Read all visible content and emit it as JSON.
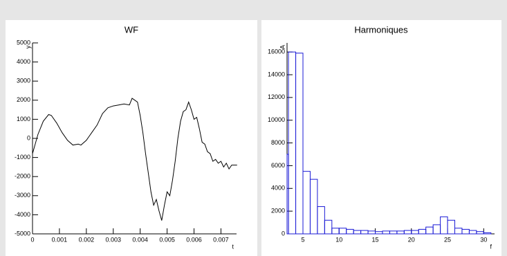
{
  "chart_data": [
    {
      "type": "line",
      "title": "WF",
      "x_label": "t",
      "y_label": "y",
      "color": "#000000",
      "x": [
        0,
        0.0002,
        0.0004,
        0.0006,
        0.0007,
        0.0009,
        0.0011,
        0.0013,
        0.0015,
        0.0017,
        0.0018,
        0.002,
        0.0022,
        0.0024,
        0.0026,
        0.0028,
        0.003,
        0.0032,
        0.0034,
        0.0036,
        0.0037,
        0.0039,
        0.004,
        0.0041,
        0.0042,
        0.0043,
        0.0044,
        0.0045,
        0.0046,
        0.0047,
        0.0048,
        0.0049,
        0.005,
        0.0051,
        0.0052,
        0.0053,
        0.0054,
        0.0055,
        0.0056,
        0.0057,
        0.0058,
        0.0059,
        0.006,
        0.0061,
        0.0062,
        0.0063,
        0.0064,
        0.0065,
        0.0066,
        0.0067,
        0.0068,
        0.0069,
        0.007,
        0.0071,
        0.0072,
        0.0073,
        0.0074,
        0.0076
      ],
      "values": [
        -800,
        200,
        900,
        1250,
        1200,
        800,
        300,
        -100,
        -350,
        -300,
        -350,
        -100,
        300,
        700,
        1300,
        1600,
        1700,
        1750,
        1800,
        1750,
        2100,
        1900,
        1200,
        300,
        -800,
        -1800,
        -2800,
        -3500,
        -3200,
        -3800,
        -4300,
        -3500,
        -2800,
        -3000,
        -2200,
        -1200,
        0,
        900,
        1400,
        1500,
        1900,
        1500,
        1000,
        1100,
        500,
        -200,
        -300,
        -700,
        -800,
        -1200,
        -1100,
        -1300,
        -1200,
        -1500,
        -1300,
        -1600,
        -1400,
        -1400
      ],
      "xlim": [
        0,
        0.00758
      ],
      "xticks": [
        0,
        0.001,
        0.002,
        0.003,
        0.004,
        0.005,
        0.006,
        0.007
      ],
      "ylim": [
        -5000,
        5000
      ],
      "yticks": [
        -5000,
        -4000,
        -3000,
        -2000,
        -1000,
        0,
        1000,
        2000,
        3000,
        4000,
        5000
      ]
    },
    {
      "type": "histogram",
      "title": "Harmoniques",
      "x_label": "f",
      "y_label": "A",
      "color": "#1a1ad6",
      "bins": [
        2.8,
        3,
        4,
        5,
        6,
        7,
        8,
        9,
        10,
        11,
        12,
        13,
        14,
        15,
        16,
        17,
        18,
        19,
        20,
        21,
        22,
        23,
        24,
        25,
        26,
        27,
        28,
        29,
        30,
        31
      ],
      "values": [
        7000,
        16000,
        15900,
        5500,
        4800,
        2400,
        1200,
        500,
        500,
        400,
        300,
        300,
        250,
        200,
        250,
        250,
        250,
        300,
        300,
        400,
        600,
        800,
        1500,
        1200,
        500,
        400,
        300,
        200,
        100
      ],
      "xlim": [
        2.8,
        31.5
      ],
      "xticks": [
        5,
        10,
        15,
        20,
        25,
        30
      ],
      "ylim": [
        0,
        16800
      ],
      "yticks": [
        0,
        2000,
        4000,
        6000,
        8000,
        10000,
        12000,
        14000,
        16000
      ]
    }
  ]
}
